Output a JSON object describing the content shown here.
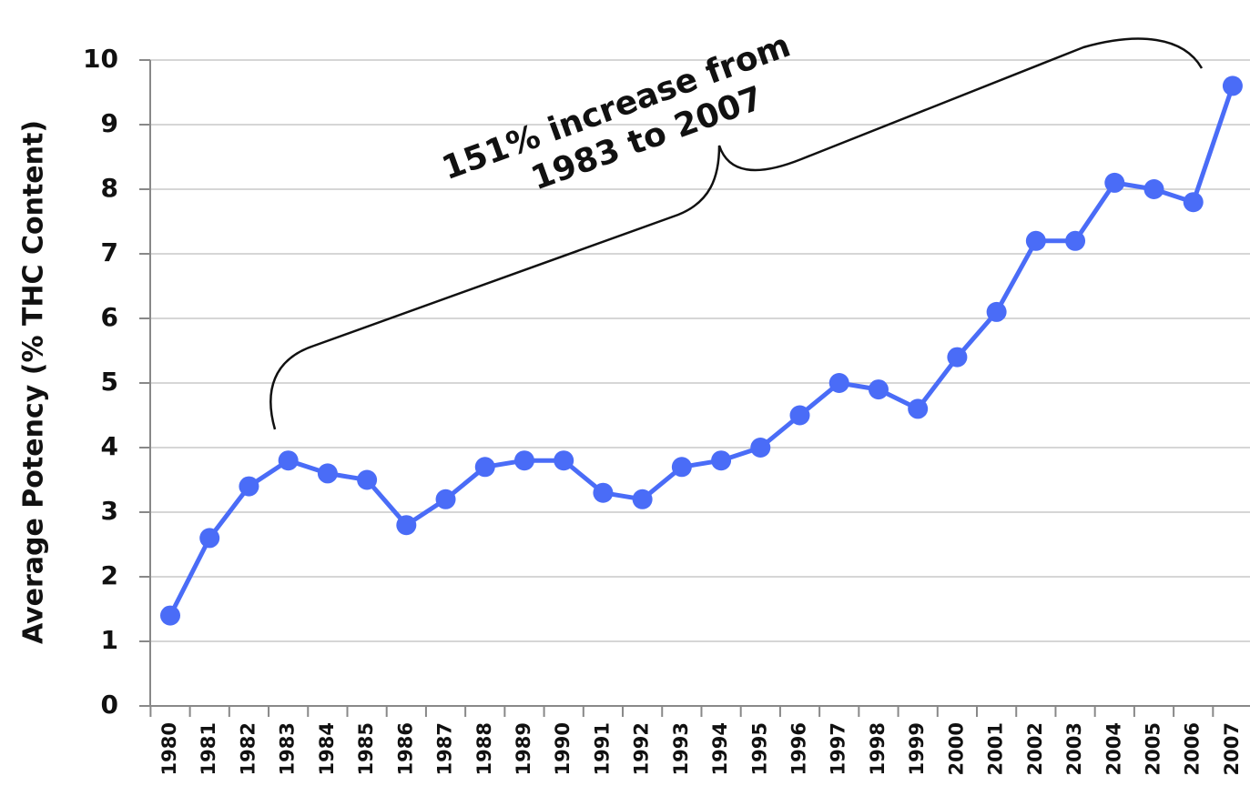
{
  "chart_data": {
    "type": "line",
    "y_label": "Average Potency (% THC Content)",
    "annotation": [
      "151% increase from",
      "1983 to 2007"
    ],
    "categories": [
      "1980",
      "1981",
      "1982",
      "1983",
      "1984",
      "1985",
      "1986",
      "1987",
      "1988",
      "1989",
      "1990",
      "1991",
      "1992",
      "1993",
      "1994",
      "1995",
      "1996",
      "1997",
      "1998",
      "1999",
      "2000",
      "2001",
      "2002",
      "2003",
      "2004",
      "2005",
      "2006",
      "2007"
    ],
    "values": [
      1.4,
      2.6,
      3.4,
      3.8,
      3.6,
      3.5,
      2.8,
      3.2,
      3.7,
      3.8,
      3.8,
      3.3,
      3.2,
      3.7,
      3.8,
      4.0,
      4.5,
      5.0,
      4.9,
      4.6,
      5.4,
      6.1,
      7.2,
      7.2,
      8.1,
      8.0,
      7.8,
      9.6
    ],
    "color": "#4a6cf7",
    "ylim": [
      0,
      10
    ],
    "yticks": [
      0,
      1,
      2,
      3,
      4,
      5,
      6,
      7,
      8,
      9,
      10
    ],
    "grid": true
  }
}
